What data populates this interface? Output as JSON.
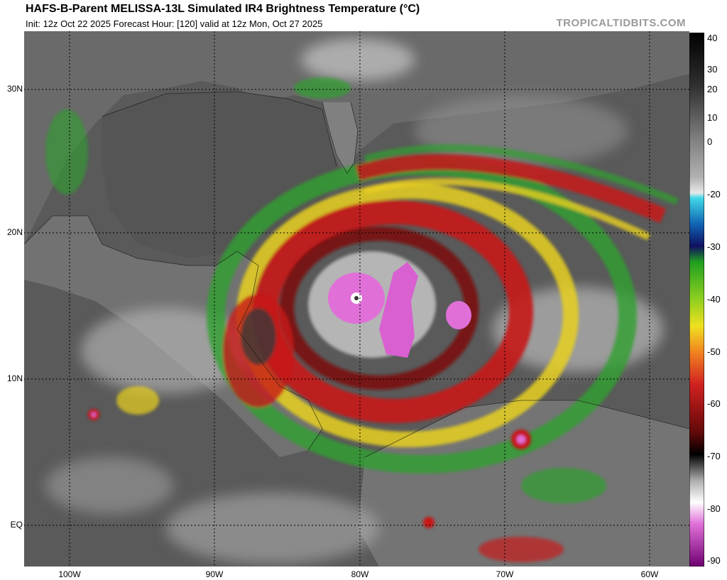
{
  "header": {
    "title": "HAFS-B-Parent MELISSA-13L Simulated IR4 Brightness Temperature (°C)",
    "subtitle": "Init: 12z Oct 22 2025   Forecast Hour: [120]   valid at 12z Mon, Oct 27 2025",
    "watermark": "TROPICALTIDBITS.COM"
  },
  "axes": {
    "lat_labels": [
      "30N",
      "20N",
      "10N",
      "EQ"
    ],
    "lon_labels": [
      "100W",
      "90W",
      "80W",
      "70W",
      "60W"
    ]
  },
  "colorbar": {
    "unit": "°C",
    "labels": [
      "40",
      "30",
      "20",
      "10",
      "0",
      "-20",
      "-30",
      "-40",
      "-50",
      "-60",
      "-70",
      "-80",
      "-90"
    ]
  },
  "storm": {
    "name": "MELISSA-13L"
  },
  "colors": {
    "land": "#6e6e6e",
    "ocean": "#5c5c5c",
    "cold_cloud_magenta": "#e070d8",
    "red_band": "#c81818",
    "yellow_band": "#e8d020",
    "green_band": "#2ea02e"
  }
}
